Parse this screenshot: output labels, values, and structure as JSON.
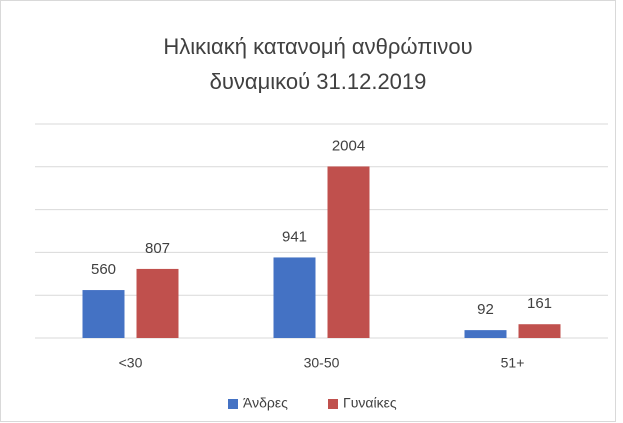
{
  "chart_data": {
    "type": "bar",
    "title": [
      "Ηλικιακή κατανομή ανθρώπινου",
      "δυναμικού 31.12.2019"
    ],
    "categories": [
      "<30",
      "30-50",
      "51+"
    ],
    "series": [
      {
        "name": "Άνδρες",
        "color": "#4472c4",
        "values": [
          560,
          941,
          92
        ]
      },
      {
        "name": "Γυναίκες",
        "color": "#c0504d",
        "values": [
          807,
          2004,
          161
        ]
      }
    ],
    "ylim": [
      0,
      2500
    ],
    "yticks": [
      0,
      500,
      1000,
      1500,
      2000,
      2500
    ],
    "grid": true,
    "legend": "bottom"
  }
}
